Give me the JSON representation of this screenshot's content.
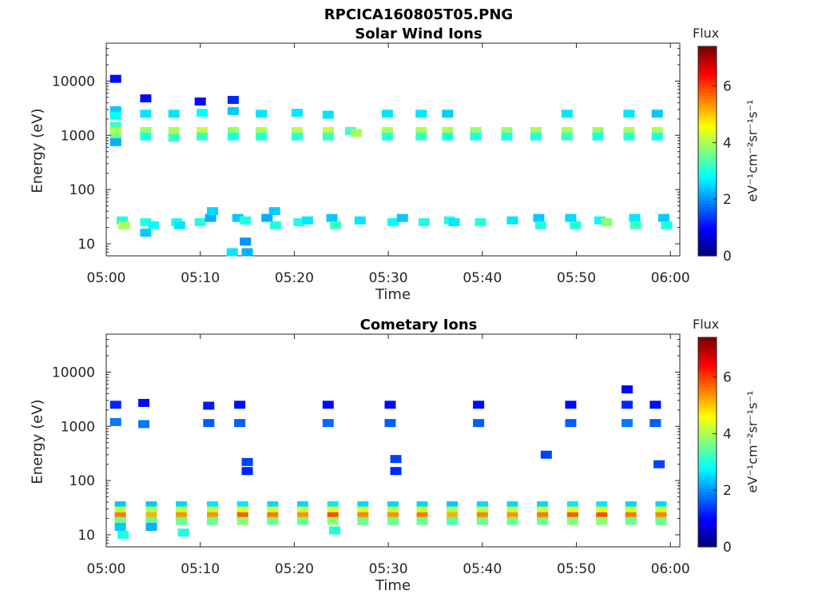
{
  "figure_title": "RPCICA160805T05.PNG",
  "chart_data": [
    {
      "type": "heatmap",
      "title": "Solar Wind Ions",
      "xlabel": "Time",
      "ylabel": "Energy (eV)",
      "y_scale": "log",
      "ylim": [
        6,
        50000
      ],
      "x_ticks": [
        "05:00",
        "05:10",
        "05:20",
        "05:30",
        "05:40",
        "05:50",
        "06:00"
      ],
      "y_ticks": [
        "10",
        "100",
        "1000",
        "10000"
      ],
      "colorbar": {
        "label": "Flux",
        "title": "eV⁻¹cm⁻²sr⁻¹s⁻¹",
        "range": [
          0,
          7.4
        ],
        "ticks": [
          "0",
          "2",
          "4",
          "6"
        ],
        "colormap": "jet"
      },
      "cells": [
        {
          "t": 1.0,
          "e": 11000,
          "v": 1.0
        },
        {
          "t": 1.0,
          "e": 2900,
          "v": 2.4
        },
        {
          "t": 1.0,
          "e": 2300,
          "v": 2.8
        },
        {
          "t": 1.0,
          "e": 1500,
          "v": 3.2
        },
        {
          "t": 1.0,
          "e": 1200,
          "v": 4.0
        },
        {
          "t": 1.0,
          "e": 900,
          "v": 3.6
        },
        {
          "t": 1.0,
          "e": 750,
          "v": 2.2
        },
        {
          "t": 1.7,
          "e": 27,
          "v": 3.0
        },
        {
          "t": 1.9,
          "e": 22,
          "v": 4.0
        },
        {
          "t": 4.2,
          "e": 4800,
          "v": 1.0
        },
        {
          "t": 4.2,
          "e": 2500,
          "v": 2.6
        },
        {
          "t": 4.2,
          "e": 1200,
          "v": 3.9
        },
        {
          "t": 4.2,
          "e": 950,
          "v": 3.0
        },
        {
          "t": 4.2,
          "e": 25,
          "v": 3.0
        },
        {
          "t": 4.2,
          "e": 16,
          "v": 2.4
        },
        {
          "t": 5.0,
          "e": 22,
          "v": 2.8
        },
        {
          "t": 7.2,
          "e": 2500,
          "v": 2.6
        },
        {
          "t": 7.2,
          "e": 1200,
          "v": 4.0
        },
        {
          "t": 7.2,
          "e": 900,
          "v": 3.2
        },
        {
          "t": 7.5,
          "e": 25,
          "v": 3.0
        },
        {
          "t": 7.8,
          "e": 22,
          "v": 2.6
        },
        {
          "t": 10.0,
          "e": 4200,
          "v": 1.0
        },
        {
          "t": 10.2,
          "e": 2600,
          "v": 2.8
        },
        {
          "t": 10.2,
          "e": 1200,
          "v": 4.2
        },
        {
          "t": 10.2,
          "e": 950,
          "v": 3.2
        },
        {
          "t": 10.0,
          "e": 25,
          "v": 3.0
        },
        {
          "t": 11.1,
          "e": 30,
          "v": 2.2
        },
        {
          "t": 11.3,
          "e": 40,
          "v": 2.5
        },
        {
          "t": 13.5,
          "e": 4500,
          "v": 1.2
        },
        {
          "t": 13.5,
          "e": 2800,
          "v": 2.4
        },
        {
          "t": 13.5,
          "e": 1200,
          "v": 3.9
        },
        {
          "t": 13.5,
          "e": 950,
          "v": 3.0
        },
        {
          "t": 14.0,
          "e": 30,
          "v": 2.4
        },
        {
          "t": 14.8,
          "e": 27,
          "v": 3.0
        },
        {
          "t": 14.8,
          "e": 11,
          "v": 2.0
        },
        {
          "t": 16.5,
          "e": 2500,
          "v": 2.6
        },
        {
          "t": 16.5,
          "e": 1200,
          "v": 4.0
        },
        {
          "t": 16.5,
          "e": 950,
          "v": 3.1
        },
        {
          "t": 17.1,
          "e": 30,
          "v": 2.2
        },
        {
          "t": 17.9,
          "e": 40,
          "v": 2.4
        },
        {
          "t": 18.0,
          "e": 22,
          "v": 3.0
        },
        {
          "t": 20.3,
          "e": 2600,
          "v": 2.6
        },
        {
          "t": 20.3,
          "e": 1200,
          "v": 4.1
        },
        {
          "t": 20.3,
          "e": 950,
          "v": 3.1
        },
        {
          "t": 20.5,
          "e": 25,
          "v": 3.0
        },
        {
          "t": 21.4,
          "e": 27,
          "v": 2.6
        },
        {
          "t": 23.6,
          "e": 2400,
          "v": 2.6
        },
        {
          "t": 23.6,
          "e": 1200,
          "v": 4.2
        },
        {
          "t": 23.6,
          "e": 950,
          "v": 3.2
        },
        {
          "t": 24.0,
          "e": 30,
          "v": 2.4
        },
        {
          "t": 24.4,
          "e": 22,
          "v": 3.2
        },
        {
          "t": 26.0,
          "e": 1200,
          "v": 3.2
        },
        {
          "t": 26.6,
          "e": 1100,
          "v": 4.0
        },
        {
          "t": 27.0,
          "e": 27,
          "v": 2.6
        },
        {
          "t": 29.9,
          "e": 2500,
          "v": 2.6
        },
        {
          "t": 29.9,
          "e": 1200,
          "v": 4.0
        },
        {
          "t": 29.9,
          "e": 950,
          "v": 3.1
        },
        {
          "t": 30.5,
          "e": 25,
          "v": 2.8
        },
        {
          "t": 31.5,
          "e": 30,
          "v": 2.4
        },
        {
          "t": 33.5,
          "e": 2500,
          "v": 2.6
        },
        {
          "t": 33.5,
          "e": 1200,
          "v": 4.0
        },
        {
          "t": 33.5,
          "e": 950,
          "v": 3.2
        },
        {
          "t": 33.8,
          "e": 25,
          "v": 3.0
        },
        {
          "t": 36.3,
          "e": 2500,
          "v": 2.4
        },
        {
          "t": 36.3,
          "e": 1200,
          "v": 4.0
        },
        {
          "t": 36.3,
          "e": 950,
          "v": 3.0
        },
        {
          "t": 36.5,
          "e": 27,
          "v": 3.0
        },
        {
          "t": 37.0,
          "e": 25,
          "v": 2.6
        },
        {
          "t": 39.3,
          "e": 1200,
          "v": 3.9
        },
        {
          "t": 39.3,
          "e": 950,
          "v": 3.0
        },
        {
          "t": 39.8,
          "e": 25,
          "v": 3.0
        },
        {
          "t": 42.6,
          "e": 1200,
          "v": 3.9
        },
        {
          "t": 42.6,
          "e": 950,
          "v": 3.0
        },
        {
          "t": 43.2,
          "e": 27,
          "v": 2.6
        },
        {
          "t": 45.7,
          "e": 1200,
          "v": 4.0
        },
        {
          "t": 45.7,
          "e": 950,
          "v": 3.0
        },
        {
          "t": 46.0,
          "e": 30,
          "v": 2.4
        },
        {
          "t": 46.2,
          "e": 22,
          "v": 3.0
        },
        {
          "t": 49.0,
          "e": 2500,
          "v": 2.6
        },
        {
          "t": 49.0,
          "e": 1200,
          "v": 4.0
        },
        {
          "t": 49.0,
          "e": 950,
          "v": 3.2
        },
        {
          "t": 49.4,
          "e": 30,
          "v": 2.5
        },
        {
          "t": 49.9,
          "e": 22,
          "v": 3.0
        },
        {
          "t": 52.3,
          "e": 1200,
          "v": 3.9
        },
        {
          "t": 52.3,
          "e": 950,
          "v": 3.0
        },
        {
          "t": 52.5,
          "e": 27,
          "v": 2.8
        },
        {
          "t": 53.2,
          "e": 25,
          "v": 3.8
        },
        {
          "t": 55.6,
          "e": 2500,
          "v": 2.6
        },
        {
          "t": 55.6,
          "e": 1200,
          "v": 4.0
        },
        {
          "t": 55.6,
          "e": 950,
          "v": 3.1
        },
        {
          "t": 56.2,
          "e": 30,
          "v": 2.6
        },
        {
          "t": 56.3,
          "e": 22,
          "v": 3.2
        },
        {
          "t": 58.6,
          "e": 2500,
          "v": 2.4
        },
        {
          "t": 58.6,
          "e": 1200,
          "v": 4.0
        },
        {
          "t": 58.6,
          "e": 950,
          "v": 3.0
        },
        {
          "t": 59.3,
          "e": 30,
          "v": 2.4
        },
        {
          "t": 59.6,
          "e": 22,
          "v": 3.0
        },
        {
          "t": 13.4,
          "e": 7,
          "v": 2.6
        },
        {
          "t": 15.0,
          "e": 7,
          "v": 2.2
        }
      ]
    },
    {
      "type": "heatmap",
      "title": "Cometary Ions",
      "xlabel": "Time",
      "ylabel": "Energy (eV)",
      "y_scale": "log",
      "ylim": [
        6,
        50000
      ],
      "x_ticks": [
        "05:00",
        "05:10",
        "05:20",
        "05:30",
        "05:40",
        "05:50",
        "06:00"
      ],
      "y_ticks": [
        "10",
        "100",
        "1000",
        "10000"
      ],
      "colorbar": {
        "label": "Flux",
        "title": "eV⁻¹cm⁻²sr⁻¹s⁻¹",
        "range": [
          0,
          7.4
        ],
        "ticks": [
          "0",
          "2",
          "4",
          "6"
        ],
        "colormap": "jet"
      },
      "cells": [
        {
          "t": 1.5,
          "e": 35,
          "v": 2.4
        },
        {
          "t": 1.5,
          "e": 28,
          "v": 4.2
        },
        {
          "t": 1.5,
          "e": 22,
          "v": 5.6
        },
        {
          "t": 1.5,
          "e": 18,
          "v": 3.6
        },
        {
          "t": 1.5,
          "e": 14,
          "v": 2.4
        },
        {
          "t": 1.8,
          "e": 10,
          "v": 3.0
        },
        {
          "t": 4.8,
          "e": 35,
          "v": 2.4
        },
        {
          "t": 4.8,
          "e": 28,
          "v": 4.0
        },
        {
          "t": 4.8,
          "e": 22,
          "v": 5.2
        },
        {
          "t": 4.8,
          "e": 18,
          "v": 3.5
        },
        {
          "t": 4.8,
          "e": 14,
          "v": 2.2
        },
        {
          "t": 8.0,
          "e": 35,
          "v": 2.5
        },
        {
          "t": 8.0,
          "e": 28,
          "v": 4.2
        },
        {
          "t": 8.0,
          "e": 22,
          "v": 5.4
        },
        {
          "t": 8.0,
          "e": 18,
          "v": 3.6
        },
        {
          "t": 8.2,
          "e": 11,
          "v": 3.0
        },
        {
          "t": 11.3,
          "e": 35,
          "v": 2.6
        },
        {
          "t": 11.3,
          "e": 28,
          "v": 4.2
        },
        {
          "t": 11.3,
          "e": 22,
          "v": 5.4
        },
        {
          "t": 11.3,
          "e": 18,
          "v": 3.6
        },
        {
          "t": 14.5,
          "e": 35,
          "v": 2.6
        },
        {
          "t": 14.5,
          "e": 28,
          "v": 4.4
        },
        {
          "t": 14.5,
          "e": 22,
          "v": 5.8
        },
        {
          "t": 14.5,
          "e": 18,
          "v": 3.8
        },
        {
          "t": 17.7,
          "e": 35,
          "v": 2.5
        },
        {
          "t": 17.7,
          "e": 28,
          "v": 4.3
        },
        {
          "t": 17.7,
          "e": 22,
          "v": 5.6
        },
        {
          "t": 17.7,
          "e": 18,
          "v": 3.6
        },
        {
          "t": 20.9,
          "e": 35,
          "v": 2.5
        },
        {
          "t": 20.9,
          "e": 28,
          "v": 4.2
        },
        {
          "t": 20.9,
          "e": 22,
          "v": 5.4
        },
        {
          "t": 20.9,
          "e": 18,
          "v": 3.6
        },
        {
          "t": 24.1,
          "e": 35,
          "v": 2.6
        },
        {
          "t": 24.1,
          "e": 28,
          "v": 4.4
        },
        {
          "t": 24.1,
          "e": 22,
          "v": 5.9
        },
        {
          "t": 24.1,
          "e": 18,
          "v": 3.8
        },
        {
          "t": 24.3,
          "e": 12,
          "v": 3.0
        },
        {
          "t": 27.3,
          "e": 35,
          "v": 2.5
        },
        {
          "t": 27.3,
          "e": 28,
          "v": 4.3
        },
        {
          "t": 27.3,
          "e": 22,
          "v": 5.5
        },
        {
          "t": 27.3,
          "e": 18,
          "v": 3.6
        },
        {
          "t": 30.5,
          "e": 35,
          "v": 2.5
        },
        {
          "t": 30.5,
          "e": 28,
          "v": 4.2
        },
        {
          "t": 30.5,
          "e": 22,
          "v": 5.4
        },
        {
          "t": 30.5,
          "e": 18,
          "v": 3.6
        },
        {
          "t": 33.6,
          "e": 35,
          "v": 2.5
        },
        {
          "t": 33.6,
          "e": 28,
          "v": 4.3
        },
        {
          "t": 33.6,
          "e": 22,
          "v": 5.6
        },
        {
          "t": 33.6,
          "e": 18,
          "v": 3.6
        },
        {
          "t": 36.8,
          "e": 35,
          "v": 2.4
        },
        {
          "t": 36.8,
          "e": 28,
          "v": 4.0
        },
        {
          "t": 36.8,
          "e": 22,
          "v": 5.2
        },
        {
          "t": 36.8,
          "e": 18,
          "v": 3.4
        },
        {
          "t": 40.0,
          "e": 35,
          "v": 2.5
        },
        {
          "t": 40.0,
          "e": 28,
          "v": 4.2
        },
        {
          "t": 40.0,
          "e": 22,
          "v": 5.5
        },
        {
          "t": 40.0,
          "e": 18,
          "v": 3.6
        },
        {
          "t": 43.2,
          "e": 35,
          "v": 2.5
        },
        {
          "t": 43.2,
          "e": 28,
          "v": 4.2
        },
        {
          "t": 43.2,
          "e": 22,
          "v": 5.4
        },
        {
          "t": 43.2,
          "e": 18,
          "v": 3.6
        },
        {
          "t": 46.4,
          "e": 35,
          "v": 2.5
        },
        {
          "t": 46.4,
          "e": 28,
          "v": 4.3
        },
        {
          "t": 46.4,
          "e": 22,
          "v": 5.6
        },
        {
          "t": 46.4,
          "e": 18,
          "v": 3.6
        },
        {
          "t": 49.6,
          "e": 35,
          "v": 2.6
        },
        {
          "t": 49.6,
          "e": 28,
          "v": 4.4
        },
        {
          "t": 49.6,
          "e": 22,
          "v": 5.8
        },
        {
          "t": 49.6,
          "e": 18,
          "v": 3.8
        },
        {
          "t": 52.7,
          "e": 35,
          "v": 2.6
        },
        {
          "t": 52.7,
          "e": 28,
          "v": 4.4
        },
        {
          "t": 52.7,
          "e": 22,
          "v": 5.9
        },
        {
          "t": 52.7,
          "e": 18,
          "v": 3.8
        },
        {
          "t": 55.8,
          "e": 35,
          "v": 2.5
        },
        {
          "t": 55.8,
          "e": 28,
          "v": 4.3
        },
        {
          "t": 55.8,
          "e": 22,
          "v": 5.6
        },
        {
          "t": 55.8,
          "e": 18,
          "v": 3.6
        },
        {
          "t": 59.0,
          "e": 35,
          "v": 2.5
        },
        {
          "t": 59.0,
          "e": 28,
          "v": 4.3
        },
        {
          "t": 59.0,
          "e": 22,
          "v": 5.5
        },
        {
          "t": 59.0,
          "e": 18,
          "v": 3.6
        },
        {
          "t": 1.0,
          "e": 2500,
          "v": 1.2
        },
        {
          "t": 1.0,
          "e": 1200,
          "v": 1.8
        },
        {
          "t": 4.0,
          "e": 2700,
          "v": 1.0
        },
        {
          "t": 4.0,
          "e": 1100,
          "v": 1.8
        },
        {
          "t": 10.9,
          "e": 2400,
          "v": 1.1
        },
        {
          "t": 10.9,
          "e": 1150,
          "v": 1.6
        },
        {
          "t": 14.2,
          "e": 2500,
          "v": 1.0
        },
        {
          "t": 14.2,
          "e": 1150,
          "v": 1.6
        },
        {
          "t": 23.6,
          "e": 2500,
          "v": 1.0
        },
        {
          "t": 23.6,
          "e": 1150,
          "v": 1.7
        },
        {
          "t": 30.2,
          "e": 2500,
          "v": 1.0
        },
        {
          "t": 30.2,
          "e": 1150,
          "v": 1.6
        },
        {
          "t": 39.6,
          "e": 2500,
          "v": 1.0
        },
        {
          "t": 39.6,
          "e": 1150,
          "v": 1.6
        },
        {
          "t": 49.4,
          "e": 2500,
          "v": 1.0
        },
        {
          "t": 49.4,
          "e": 1150,
          "v": 1.6
        },
        {
          "t": 55.4,
          "e": 4800,
          "v": 1.0
        },
        {
          "t": 55.4,
          "e": 2500,
          "v": 1.2
        },
        {
          "t": 55.4,
          "e": 1150,
          "v": 1.8
        },
        {
          "t": 58.4,
          "e": 2500,
          "v": 1.0
        },
        {
          "t": 58.4,
          "e": 1150,
          "v": 1.6
        },
        {
          "t": 15.0,
          "e": 220,
          "v": 1.4
        },
        {
          "t": 15.0,
          "e": 150,
          "v": 1.2
        },
        {
          "t": 30.8,
          "e": 250,
          "v": 1.4
        },
        {
          "t": 30.8,
          "e": 150,
          "v": 1.2
        },
        {
          "t": 46.8,
          "e": 300,
          "v": 1.4
        },
        {
          "t": 58.8,
          "e": 200,
          "v": 1.4
        }
      ]
    }
  ]
}
